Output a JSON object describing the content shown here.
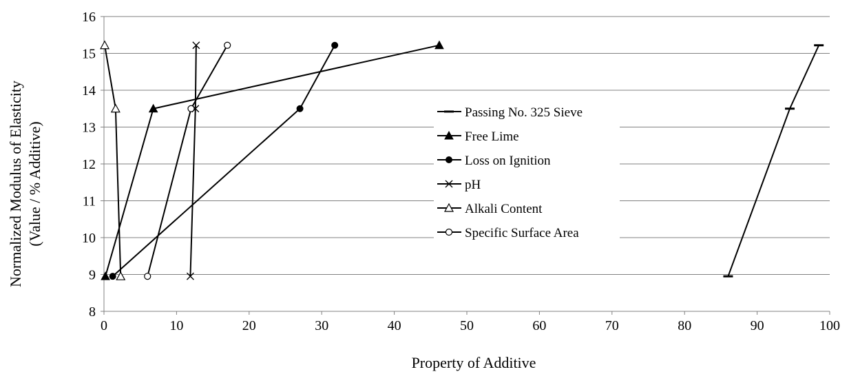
{
  "chart_data": {
    "type": "line",
    "xlabel": "Property of Additive",
    "ylabel_lines": [
      "Normalized Modulus of Elasticity",
      "(Value / % Additive)"
    ],
    "xlim": [
      0,
      100
    ],
    "ylim": [
      8,
      16
    ],
    "xticks": [
      0,
      10,
      20,
      30,
      40,
      50,
      60,
      70,
      80,
      90,
      100
    ],
    "yticks": [
      8,
      9,
      10,
      11,
      12,
      13,
      14,
      15,
      16
    ],
    "grid": "horizontal",
    "legend_position": "center",
    "series": [
      {
        "name": "Passing No. 325 Sieve",
        "marker": "dash",
        "points": [
          [
            86.0,
            8.95
          ],
          [
            94.5,
            13.5
          ],
          [
            98.5,
            15.22
          ]
        ]
      },
      {
        "name": "Free Lime",
        "marker": "triangle-filled",
        "points": [
          [
            0.2,
            8.95
          ],
          [
            6.8,
            13.5
          ],
          [
            46.2,
            15.22
          ]
        ]
      },
      {
        "name": "Loss on Ignition",
        "marker": "circle-filled",
        "points": [
          [
            1.2,
            8.95
          ],
          [
            27.0,
            13.5
          ],
          [
            31.8,
            15.22
          ]
        ]
      },
      {
        "name": "pH",
        "marker": "x",
        "points": [
          [
            11.9,
            8.95
          ],
          [
            12.6,
            13.5
          ],
          [
            12.7,
            15.22
          ]
        ]
      },
      {
        "name": "Alkali Content",
        "marker": "triangle-open",
        "points": [
          [
            2.3,
            8.95
          ],
          [
            1.6,
            13.5
          ],
          [
            0.1,
            15.22
          ]
        ]
      },
      {
        "name": "Specific Surface Area",
        "marker": "circle-open",
        "points": [
          [
            6.0,
            8.95
          ],
          [
            12.0,
            13.5
          ],
          [
            17.0,
            15.22
          ]
        ]
      }
    ]
  }
}
